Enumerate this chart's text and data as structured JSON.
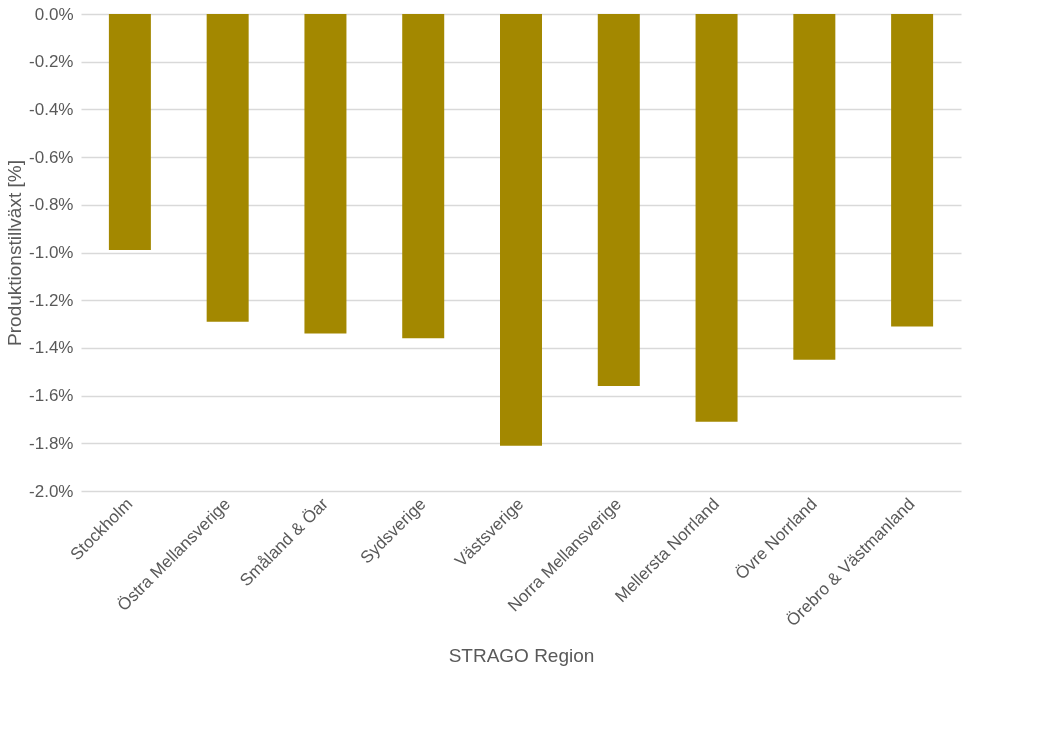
{
  "chart_data": {
    "type": "bar",
    "xlabel": "STRAGO Region",
    "ylabel": "Produktionstillväxt [%]",
    "categories": [
      "Stockholm",
      "Östra Mellansverige",
      "Småland & Öar",
      "Sydsverige",
      "Västsverige",
      "Norra Mellansverige",
      "Mellersta Norrland",
      "Övre Norrland",
      "Örebro & Västmanland"
    ],
    "values": [
      -0.99,
      -1.29,
      -1.34,
      -1.36,
      -1.81,
      -1.56,
      -1.71,
      -1.45,
      -1.31
    ],
    "color": "#a38800",
    "ylim": [
      -2.0,
      0.0
    ],
    "yticks": [
      {
        "value": 0,
        "label": "0.0%"
      },
      {
        "value": -0.2,
        "label": "-0.2%"
      },
      {
        "value": -0.4,
        "label": "-0.4%"
      },
      {
        "value": -0.6,
        "label": "-0.6%"
      },
      {
        "value": -0.8,
        "label": "-0.8%"
      },
      {
        "value": -1.0,
        "label": "-1.0%"
      },
      {
        "value": -1.2,
        "label": "-1.2%"
      },
      {
        "value": -1.4,
        "label": "-1.4%"
      },
      {
        "value": -1.6,
        "label": "-1.6%"
      },
      {
        "value": -1.8,
        "label": "-1.8%"
      },
      {
        "value": -2.0,
        "label": "-2.0%"
      }
    ],
    "grid": "y"
  }
}
